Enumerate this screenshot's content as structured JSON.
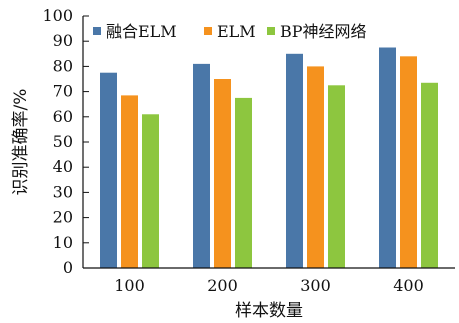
{
  "chart_data": {
    "type": "bar",
    "categories": [
      "100",
      "200",
      "300",
      "400"
    ],
    "series": [
      {
        "name": "融合ELM",
        "values": [
          77.5,
          81,
          85,
          87.5
        ],
        "color": "#4a77a8"
      },
      {
        "name": "ELM",
        "values": [
          68.5,
          75,
          80,
          84
        ],
        "color": "#f5921e"
      },
      {
        "name": "BP神经网络",
        "values": [
          61,
          67.5,
          72.5,
          73.5
        ],
        "color": "#8dc63f"
      }
    ],
    "title": "",
    "xlabel": "样本数量",
    "ylabel": "识别准确率/%",
    "ylim": [
      0,
      100
    ],
    "yticks": [
      0,
      10,
      20,
      30,
      40,
      50,
      60,
      70,
      80,
      90,
      100
    ],
    "grid": false,
    "legend_position": "top"
  }
}
